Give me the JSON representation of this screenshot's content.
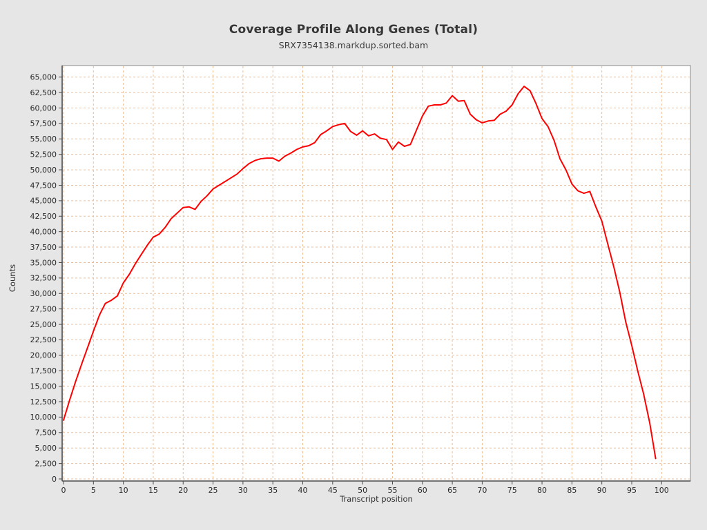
{
  "title": "Coverage Profile Along Genes (Total)",
  "subtitle": "SRX7354138.markdup.sorted.bam",
  "colors": {
    "page_background": "#e6e6e6",
    "plot_background": "#ffffff",
    "grid_line": "#f0bd92",
    "series_line": "#ff0000",
    "plot_border": "#8a8a8a",
    "axis_spine": "#4a4a4a",
    "tick_text": "#262626",
    "title_text": "#363636"
  },
  "chart_data": {
    "type": "line",
    "title": "Coverage Profile Along Genes (Total)",
    "subtitle": "SRX7354138.markdup.sorted.bam",
    "xlabel": "Transcript position",
    "ylabel": "Counts",
    "xlim": [
      0,
      104.5
    ],
    "ylim": [
      0,
      66900
    ],
    "grid": true,
    "grid_style": "dashed",
    "legend_position": "none",
    "x_ticks": [
      0,
      5,
      10,
      15,
      20,
      25,
      30,
      35,
      40,
      45,
      50,
      55,
      60,
      65,
      70,
      75,
      80,
      85,
      90,
      95,
      100
    ],
    "y_ticks": [
      0,
      2500,
      5000,
      7500,
      10000,
      12500,
      15000,
      17500,
      20000,
      22500,
      25000,
      27500,
      30000,
      32500,
      35000,
      37500,
      40000,
      42500,
      45000,
      47500,
      50000,
      52500,
      55000,
      57500,
      60000,
      62500,
      65000
    ],
    "series": [
      {
        "name": "SRX7354138.markdup.sorted.bam",
        "color": "#ff0000",
        "x_start": 0,
        "x_step": 1,
        "values": [
          9500,
          12700,
          15700,
          18500,
          21200,
          23900,
          26500,
          28400,
          28900,
          29600,
          31700,
          33100,
          34800,
          36300,
          37800,
          39100,
          39600,
          40700,
          42100,
          43000,
          43900,
          44000,
          43600,
          44900,
          45800,
          46900,
          47500,
          48100,
          48700,
          49300,
          50200,
          51000,
          51500,
          51800,
          51900,
          51900,
          51400,
          52200,
          52700,
          53300,
          53700,
          53900,
          54400,
          55700,
          56300,
          57000,
          57300,
          57500,
          56200,
          55600,
          56300,
          55500,
          55800,
          55100,
          54900,
          53300,
          54500,
          53800,
          54100,
          56400,
          58700,
          60300,
          60500,
          60500,
          60800,
          62000,
          61100,
          61200,
          59000,
          58100,
          57600,
          57900,
          58000,
          59000,
          59500,
          60500,
          62300,
          63500,
          62800,
          60700,
          58300,
          57000,
          54800,
          51800,
          50000,
          47700,
          46600,
          46200,
          46500,
          44000,
          41700,
          38000,
          34300,
          30200,
          25400,
          21600,
          17500,
          13700,
          9100,
          3300
        ]
      }
    ]
  }
}
